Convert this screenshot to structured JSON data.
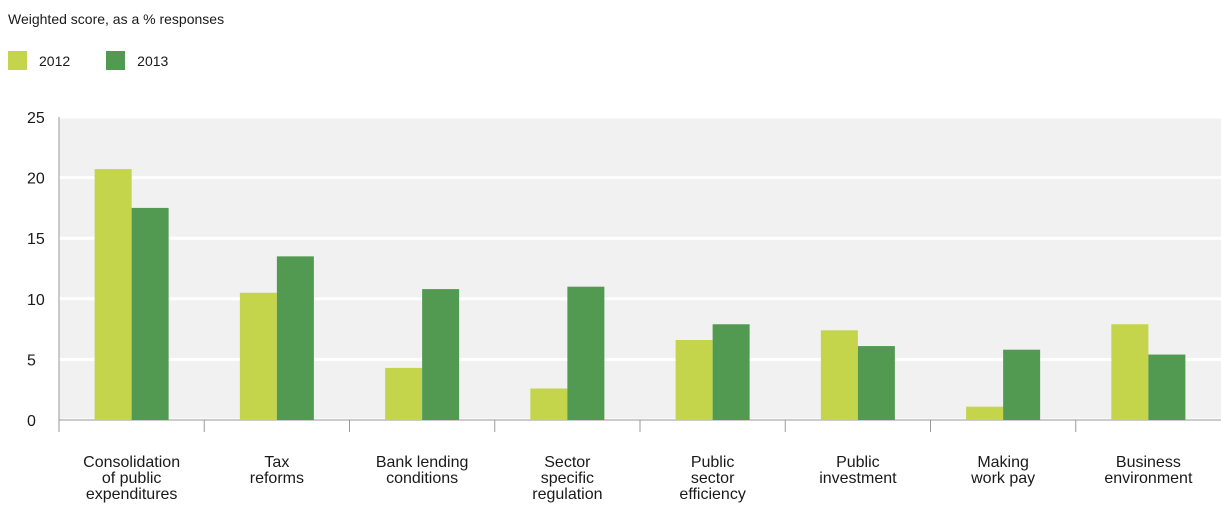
{
  "chart_data": {
    "type": "bar",
    "subtitle": "Weighted score, as a % responses",
    "categories": [
      [
        "Consolidation",
        "of public",
        "expenditures"
      ],
      [
        "Tax",
        "reforms"
      ],
      [
        "Bank lending",
        "conditions"
      ],
      [
        "Sector",
        "specific",
        "regulation"
      ],
      [
        "Public",
        "sector",
        "efficiency"
      ],
      [
        "Public",
        "investment"
      ],
      [
        "Making",
        "work pay"
      ],
      [
        "Business",
        "environment"
      ]
    ],
    "series": [
      {
        "name": "2012",
        "color": "#c4d44b",
        "values": [
          20.7,
          10.5,
          4.3,
          2.6,
          6.6,
          7.4,
          1.1,
          7.9
        ]
      },
      {
        "name": "2013",
        "color": "#529a52",
        "values": [
          17.5,
          13.5,
          10.8,
          11.0,
          7.9,
          6.1,
          5.8,
          5.4
        ]
      }
    ],
    "yticks": [
      0,
      5,
      10,
      15,
      20,
      25
    ],
    "ylim": [
      0,
      25
    ],
    "grid": true,
    "plot_background": "#f1f1f1",
    "legend_position": "top-left"
  }
}
